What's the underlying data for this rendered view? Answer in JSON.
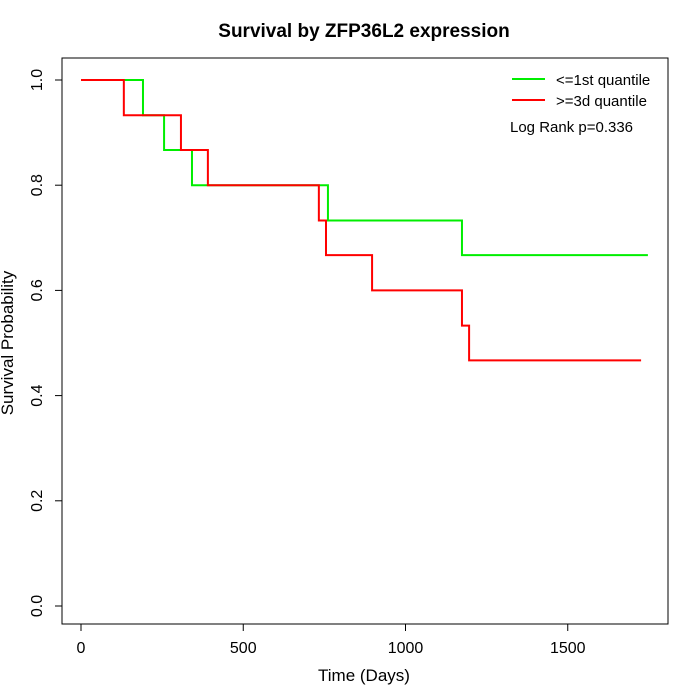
{
  "chart_data": {
    "type": "line",
    "title": "Survival by ZFP36L2 expression",
    "xlabel": "Time (Days)",
    "ylabel": "Survival Probability",
    "xlim": [
      0,
      1750
    ],
    "ylim": [
      0,
      1
    ],
    "xticks": [
      0,
      500,
      1000,
      1500
    ],
    "yticks": [
      0.0,
      0.2,
      0.4,
      0.6,
      0.8,
      1.0
    ],
    "xtick_labels": [
      "0",
      "500",
      "1000",
      "1500"
    ],
    "ytick_labels": [
      "0.0",
      "0.2",
      "0.4",
      "0.6",
      "0.8",
      "1.0"
    ],
    "legend_position": "top-right",
    "annotation": "Log Rank p=0.336",
    "series": [
      {
        "name": "<=1st quantile",
        "color": "#00ee00",
        "steps": [
          [
            0,
            1.0
          ],
          [
            191,
            0.933
          ],
          [
            256,
            0.867
          ],
          [
            342,
            0.8
          ],
          [
            761,
            0.733
          ],
          [
            1174,
            0.667
          ]
        ],
        "end": 1747
      },
      {
        "name": ">=3d quantile",
        "color": "#ff0000",
        "steps": [
          [
            0,
            1.0
          ],
          [
            132,
            0.933
          ],
          [
            308,
            0.867
          ],
          [
            391,
            0.8
          ],
          [
            733,
            0.733
          ],
          [
            755,
            0.667
          ],
          [
            897,
            0.6
          ],
          [
            1174,
            0.533
          ],
          [
            1196,
            0.467
          ]
        ],
        "end": 1726
      }
    ]
  }
}
